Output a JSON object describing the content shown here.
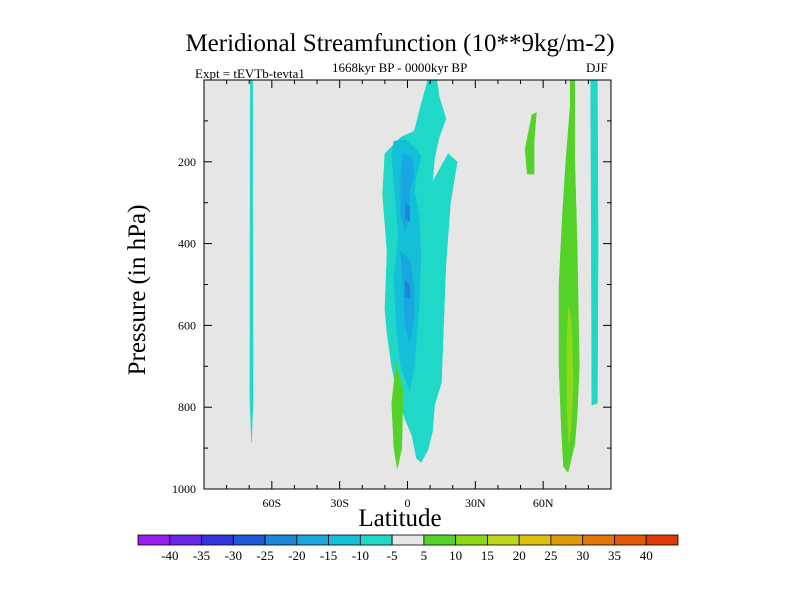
{
  "chart_data": {
    "type": "heatmap",
    "title": "Meridional Streamfunction (10**9kg/m-2)",
    "subtitle_left": "Expt = tEVTb-tevta1",
    "subtitle_center": "1668kyr BP - 0000kyr BP",
    "subtitle_right": "DJF",
    "xlabel": "Latitude",
    "ylabel": "Pressure (in hPa)",
    "xlim": [
      -90,
      90
    ],
    "ylim": [
      1000,
      0
    ],
    "x_ticks": [
      {
        "value": -60,
        "label": "60S"
      },
      {
        "value": -30,
        "label": "30S"
      },
      {
        "value": 0,
        "label": "0"
      },
      {
        "value": 30,
        "label": "30N"
      },
      {
        "value": 60,
        "label": "60N"
      }
    ],
    "y_ticks": [
      {
        "value": 200,
        "label": "200"
      },
      {
        "value": 400,
        "label": "400"
      },
      {
        "value": 600,
        "label": "600"
      },
      {
        "value": 800,
        "label": "800"
      },
      {
        "value": 1000,
        "label": "1000"
      }
    ],
    "background_color": "#e6e6e6",
    "colorbar": {
      "labels": [
        "-40",
        "-35",
        "-30",
        "-25",
        "-20",
        "-15",
        "-10",
        "-5",
        "5",
        "10",
        "15",
        "20",
        "25",
        "30",
        "35",
        "40"
      ],
      "colors": [
        "#9a1ef0",
        "#6a25e6",
        "#3535dd",
        "#1f5ad8",
        "#1e86d8",
        "#1aa6e0",
        "#14c0d8",
        "#1fd8c8",
        "#e6e6e6",
        "#55d22a",
        "#8ed81a",
        "#bdd51a",
        "#ddc00e",
        "#e09a08",
        "#e27606",
        "#e25806",
        "#e23a04"
      ]
    },
    "regions": [
      {
        "name": "-5-to-0 streamer 60S",
        "level": "-5",
        "color": "#1fd8c8",
        "points": [
          [
            -69.5,
            0
          ],
          [
            -68.5,
            0
          ],
          [
            -68.5,
            300
          ],
          [
            -68.3,
            780
          ],
          [
            -69,
            885
          ],
          [
            -69.7,
            780
          ],
          [
            -69.6,
            300
          ]
        ]
      },
      {
        "name": "-5-to-0 equatorial cell",
        "level": "-5",
        "color": "#1fd8c8",
        "points": [
          [
            -10,
            180
          ],
          [
            -3,
            140
          ],
          [
            3,
            125
          ],
          [
            6,
            60
          ],
          [
            9,
            0
          ],
          [
            13,
            0
          ],
          [
            14,
            40
          ],
          [
            17,
            95
          ],
          [
            14,
            140
          ],
          [
            12,
            190
          ],
          [
            11,
            250
          ],
          [
            18,
            180
          ],
          [
            22,
            200
          ],
          [
            19,
            300
          ],
          [
            17,
            450
          ],
          [
            15,
            740
          ],
          [
            12,
            795
          ],
          [
            11,
            860
          ],
          [
            9,
            905
          ],
          [
            6,
            935
          ],
          [
            4,
            925
          ],
          [
            2,
            870
          ],
          [
            -1,
            830
          ],
          [
            -4,
            780
          ],
          [
            -7,
            700
          ],
          [
            -9,
            620
          ],
          [
            -10,
            560
          ],
          [
            -9,
            420
          ],
          [
            -11,
            280
          ]
        ]
      },
      {
        "name": "-5-to-0 streamer 80N",
        "level": "-5",
        "color": "#1fd8c8",
        "points": [
          [
            81,
            0
          ],
          [
            84,
            0
          ],
          [
            84.3,
            400
          ],
          [
            84,
            790
          ],
          [
            81.5,
            795
          ],
          [
            81.3,
            400
          ]
        ]
      },
      {
        "name": "-10-to-5 core",
        "level": "-10",
        "color": "#14c0d8",
        "points": [
          [
            -6,
            150
          ],
          [
            -1,
            145
          ],
          [
            3,
            165
          ],
          [
            6,
            185
          ],
          [
            4,
            230
          ],
          [
            3,
            270
          ],
          [
            5,
            330
          ],
          [
            6,
            430
          ],
          [
            5,
            560
          ],
          [
            3,
            700
          ],
          [
            1,
            760
          ],
          [
            -3,
            700
          ],
          [
            -5,
            600
          ],
          [
            -6,
            480
          ],
          [
            -4,
            380
          ],
          [
            -6,
            250
          ],
          [
            -7,
            180
          ]
        ]
      },
      {
        "name": "-15-to-10 upper",
        "level": "-15",
        "color": "#1aa6e0",
        "points": [
          [
            -2,
            180
          ],
          [
            2,
            190
          ],
          [
            3,
            230
          ],
          [
            1,
            270
          ],
          [
            1,
            330
          ],
          [
            -1,
            370
          ],
          [
            -3,
            330
          ],
          [
            -3,
            240
          ]
        ]
      },
      {
        "name": "-15-to-10 lower",
        "level": "-15",
        "color": "#1aa6e0",
        "points": [
          [
            -3,
            420
          ],
          [
            1,
            440
          ],
          [
            3,
            510
          ],
          [
            3,
            580
          ],
          [
            1,
            640
          ],
          [
            -1,
            600
          ],
          [
            -2,
            510
          ]
        ]
      },
      {
        "name": "-20-to-15 patch upper",
        "level": "-20",
        "color": "#1e86d8",
        "points": [
          [
            -1,
            300
          ],
          [
            1,
            310
          ],
          [
            1,
            345
          ],
          [
            -1,
            340
          ]
        ]
      },
      {
        "name": "-20-to-15 patch lower",
        "level": "-20",
        "color": "#1e86d8",
        "points": [
          [
            -1,
            490
          ],
          [
            1,
            500
          ],
          [
            1,
            535
          ],
          [
            -1,
            530
          ]
        ]
      },
      {
        "name": "5-to-10 lower-left",
        "level": "5",
        "color": "#55d22a",
        "points": [
          [
            -5,
            690
          ],
          [
            -2,
            760
          ],
          [
            -2.5,
            900
          ],
          [
            -4.5,
            950
          ],
          [
            -6,
            900
          ],
          [
            -7,
            790
          ]
        ]
      },
      {
        "name": "5-to-10 tilted 50N",
        "level": "5",
        "color": "#55d22a",
        "points": [
          [
            55,
            85
          ],
          [
            57,
            80
          ],
          [
            56,
            150
          ],
          [
            56,
            230
          ],
          [
            53,
            230
          ],
          [
            52,
            170
          ]
        ]
      },
      {
        "name": "5-to-10 band 70N",
        "level": "5",
        "color": "#55d22a",
        "points": [
          [
            72,
            0
          ],
          [
            74,
            0
          ],
          [
            74,
            200
          ],
          [
            75,
            400
          ],
          [
            76,
            700
          ],
          [
            75,
            820
          ],
          [
            74,
            890
          ],
          [
            71,
            960
          ],
          [
            69,
            945
          ],
          [
            68,
            850
          ],
          [
            67,
            700
          ],
          [
            67,
            500
          ],
          [
            68.5,
            330
          ],
          [
            70,
            200
          ],
          [
            72,
            60
          ]
        ]
      },
      {
        "name": "10-to-15 band 70N",
        "level": "10",
        "color": "#8ed81a",
        "points": [
          [
            71.3,
            550
          ],
          [
            72.6,
            600
          ],
          [
            73.3,
            750
          ],
          [
            72.3,
            850
          ],
          [
            71.4,
            890
          ],
          [
            70.6,
            800
          ],
          [
            70.4,
            650
          ]
        ]
      }
    ]
  }
}
